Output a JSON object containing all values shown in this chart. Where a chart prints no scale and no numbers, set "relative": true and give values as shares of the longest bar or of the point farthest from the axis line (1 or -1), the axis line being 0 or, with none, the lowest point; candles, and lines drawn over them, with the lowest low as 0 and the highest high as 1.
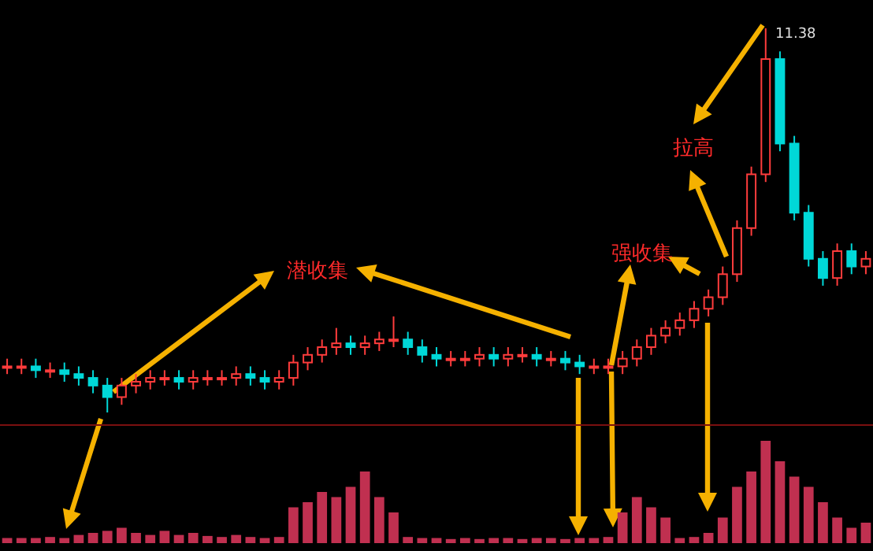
{
  "chart_data": [
    {
      "type": "candlestick",
      "relative": true,
      "categories": [
        null,
        null,
        null,
        null,
        null,
        null,
        null,
        null,
        null,
        null,
        null,
        null,
        null,
        null,
        null,
        null,
        null,
        null,
        null,
        null,
        null,
        null,
        null,
        null,
        null,
        null,
        null,
        null,
        null,
        null,
        null,
        null,
        null,
        null,
        null,
        null,
        null,
        null,
        null,
        null,
        null,
        null,
        null,
        null,
        null,
        null,
        null,
        null,
        null,
        null,
        null,
        null,
        null,
        null,
        null,
        null,
        null,
        null,
        null,
        null,
        null
      ],
      "ohlc": [
        [
          0.12,
          0.14,
          0.1,
          0.12
        ],
        [
          0.12,
          0.14,
          0.1,
          0.12
        ],
        [
          0.12,
          0.14,
          0.09,
          0.11
        ],
        [
          0.11,
          0.13,
          0.09,
          0.11
        ],
        [
          0.11,
          0.13,
          0.08,
          0.1
        ],
        [
          0.1,
          0.12,
          0.07,
          0.09
        ],
        [
          0.09,
          0.11,
          0.05,
          0.07
        ],
        [
          0.07,
          0.09,
          0,
          0.04
        ],
        [
          0.04,
          0.09,
          0.02,
          0.07
        ],
        [
          0.07,
          0.1,
          0.05,
          0.08
        ],
        [
          0.08,
          0.11,
          0.06,
          0.09
        ],
        [
          0.09,
          0.11,
          0.07,
          0.09
        ],
        [
          0.09,
          0.11,
          0.06,
          0.08
        ],
        [
          0.08,
          0.11,
          0.06,
          0.09
        ],
        [
          0.09,
          0.11,
          0.07,
          0.09
        ],
        [
          0.09,
          0.11,
          0.07,
          0.09
        ],
        [
          0.09,
          0.12,
          0.07,
          0.1
        ],
        [
          0.1,
          0.12,
          0.07,
          0.09
        ],
        [
          0.09,
          0.11,
          0.06,
          0.08
        ],
        [
          0.08,
          0.11,
          0.06,
          0.09
        ],
        [
          0.09,
          0.15,
          0.07,
          0.13
        ],
        [
          0.13,
          0.17,
          0.11,
          0.15
        ],
        [
          0.15,
          0.19,
          0.13,
          0.17
        ],
        [
          0.17,
          0.22,
          0.15,
          0.18
        ],
        [
          0.18,
          0.2,
          0.15,
          0.17
        ],
        [
          0.17,
          0.2,
          0.15,
          0.18
        ],
        [
          0.18,
          0.21,
          0.16,
          0.19
        ],
        [
          0.19,
          0.25,
          0.17,
          0.19
        ],
        [
          0.19,
          0.21,
          0.15,
          0.17
        ],
        [
          0.17,
          0.19,
          0.13,
          0.15
        ],
        [
          0.15,
          0.17,
          0.12,
          0.14
        ],
        [
          0.14,
          0.16,
          0.12,
          0.14
        ],
        [
          0.14,
          0.16,
          0.12,
          0.14
        ],
        [
          0.14,
          0.17,
          0.12,
          0.15
        ],
        [
          0.15,
          0.17,
          0.12,
          0.14
        ],
        [
          0.14,
          0.17,
          0.12,
          0.15
        ],
        [
          0.15,
          0.17,
          0.13,
          0.15
        ],
        [
          0.15,
          0.17,
          0.12,
          0.14
        ],
        [
          0.14,
          0.16,
          0.12,
          0.14
        ],
        [
          0.14,
          0.16,
          0.11,
          0.13
        ],
        [
          0.13,
          0.15,
          0.1,
          0.12
        ],
        [
          0.12,
          0.14,
          0.1,
          0.12
        ],
        [
          0.12,
          0.14,
          0.1,
          0.12
        ],
        [
          0.12,
          0.16,
          0.1,
          0.14
        ],
        [
          0.14,
          0.19,
          0.12,
          0.17
        ],
        [
          0.17,
          0.22,
          0.15,
          0.2
        ],
        [
          0.2,
          0.24,
          0.18,
          0.22
        ],
        [
          0.22,
          0.26,
          0.2,
          0.24
        ],
        [
          0.24,
          0.29,
          0.22,
          0.27
        ],
        [
          0.27,
          0.32,
          0.25,
          0.3
        ],
        [
          0.3,
          0.38,
          0.28,
          0.36
        ],
        [
          0.36,
          0.5,
          0.34,
          0.48
        ],
        [
          0.48,
          0.64,
          0.46,
          0.62
        ],
        [
          0.62,
          1,
          0.6,
          0.92
        ],
        [
          0.92,
          0.94,
          0.68,
          0.7
        ],
        [
          0.7,
          0.72,
          0.5,
          0.52
        ],
        [
          0.52,
          0.54,
          0.38,
          0.4
        ],
        [
          0.4,
          0.42,
          0.33,
          0.35
        ],
        [
          0.35,
          0.44,
          0.33,
          0.42
        ],
        [
          0.42,
          0.44,
          0.36,
          0.38
        ],
        [
          0.38,
          0.42,
          0.36,
          0.4
        ]
      ],
      "annotations": [
        "潜收集",
        "强收集",
        "拉高",
        "11.38"
      ]
    },
    {
      "type": "bar",
      "relative": true,
      "color": "#c03050",
      "categories": [
        null,
        null,
        null,
        null,
        null,
        null,
        null,
        null,
        null,
        null,
        null,
        null,
        null,
        null,
        null,
        null,
        null,
        null,
        null,
        null,
        null,
        null,
        null,
        null,
        null,
        null,
        null,
        null,
        null,
        null,
        null,
        null,
        null,
        null,
        null,
        null,
        null,
        null,
        null,
        null,
        null,
        null,
        null,
        null,
        null,
        null,
        null,
        null,
        null,
        null,
        null,
        null,
        null,
        null,
        null,
        null,
        null,
        null,
        null,
        null,
        null
      ],
      "values": [
        0.05,
        0.05,
        0.05,
        0.06,
        0.05,
        0.08,
        0.1,
        0.12,
        0.15,
        0.1,
        0.08,
        0.12,
        0.08,
        0.1,
        0.07,
        0.06,
        0.08,
        0.06,
        0.05,
        0.06,
        0.35,
        0.4,
        0.5,
        0.45,
        0.55,
        0.7,
        0.45,
        0.3,
        0.06,
        0.05,
        0.05,
        0.04,
        0.05,
        0.04,
        0.05,
        0.05,
        0.04,
        0.05,
        0.05,
        0.04,
        0.05,
        0.05,
        0.06,
        0.3,
        0.45,
        0.35,
        0.25,
        0.05,
        0.06,
        0.1,
        0.25,
        0.55,
        0.7,
        1,
        0.8,
        0.65,
        0.55,
        0.4,
        0.25,
        0.15,
        0.2
      ]
    }
  ]
}
